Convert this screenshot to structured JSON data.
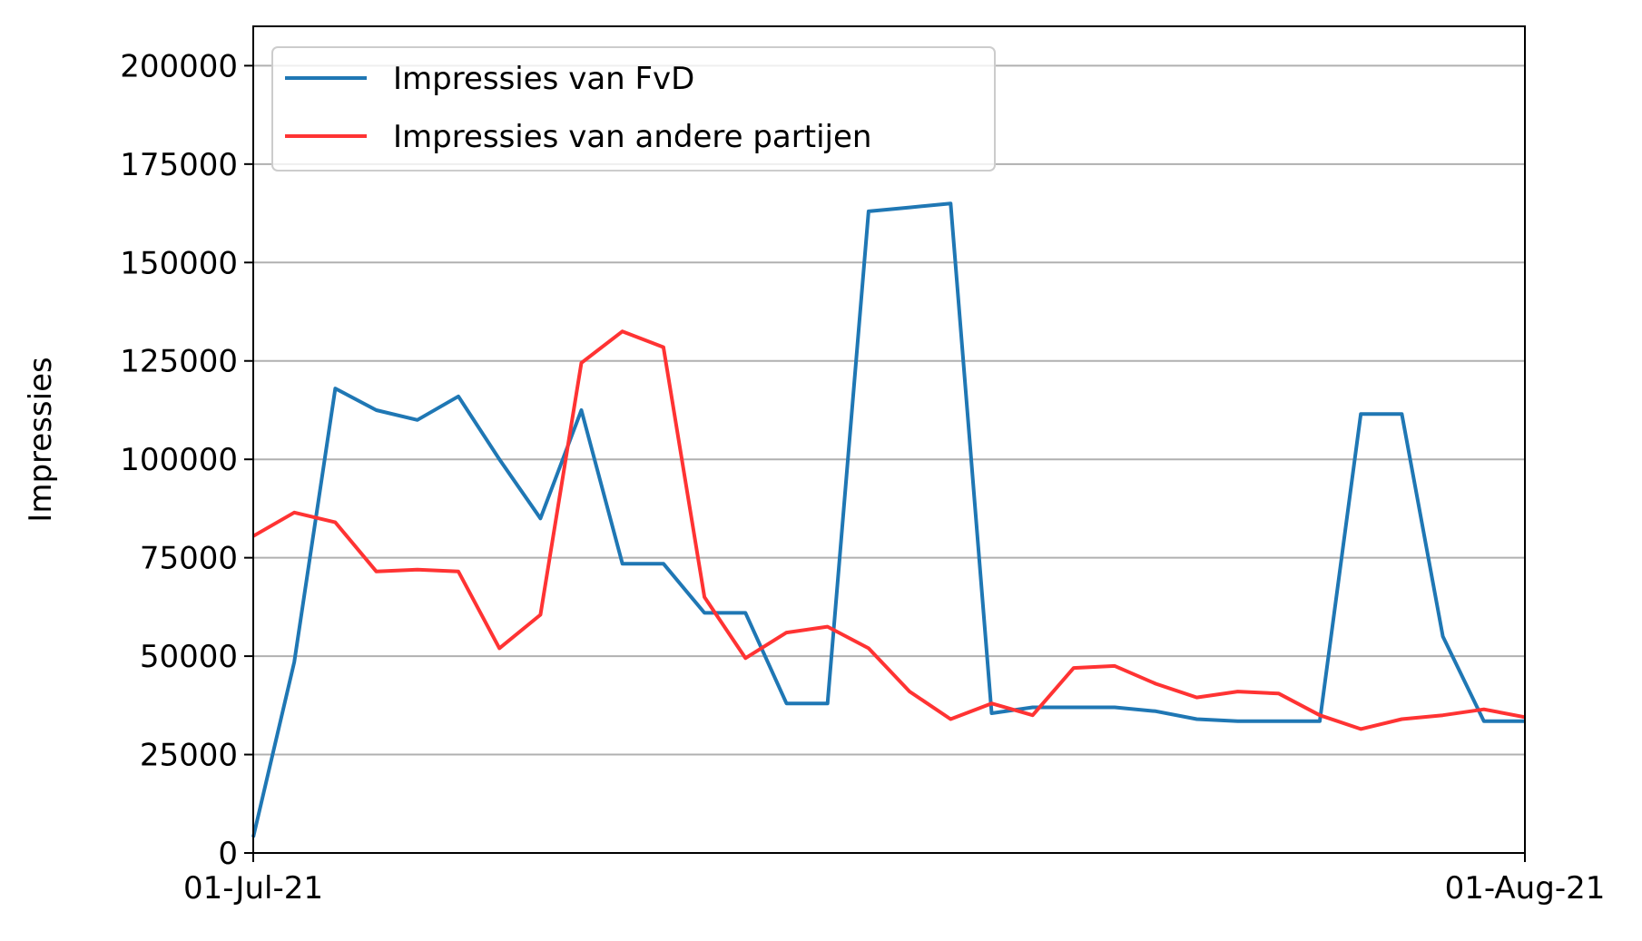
{
  "chart_data": {
    "type": "line",
    "title": "",
    "xlabel": "",
    "ylabel": "Impressies",
    "x_tick_labels": [
      "01-Jul-21",
      "01-Aug-21"
    ],
    "y_ticks": [
      0,
      25000,
      50000,
      75000,
      100000,
      125000,
      150000,
      175000,
      200000
    ],
    "y_tick_labels": [
      "0",
      "25000",
      "50000",
      "75000",
      "100000",
      "125000",
      "150000",
      "175000",
      "200000"
    ],
    "xlim": [
      "2021-07-01",
      "2021-08-01"
    ],
    "ylim": [
      0,
      210000
    ],
    "grid": "horizontal",
    "legend_position": "top-left",
    "x": [
      "2021-07-01",
      "2021-07-02",
      "2021-07-03",
      "2021-07-04",
      "2021-07-05",
      "2021-07-06",
      "2021-07-07",
      "2021-07-08",
      "2021-07-09",
      "2021-07-10",
      "2021-07-11",
      "2021-07-12",
      "2021-07-13",
      "2021-07-14",
      "2021-07-15",
      "2021-07-16",
      "2021-07-17",
      "2021-07-18",
      "2021-07-19",
      "2021-07-20",
      "2021-07-21",
      "2021-07-22",
      "2021-07-23",
      "2021-07-24",
      "2021-07-25",
      "2021-07-26",
      "2021-07-27",
      "2021-07-28",
      "2021-07-29",
      "2021-07-30",
      "2021-07-31",
      "2021-08-01"
    ],
    "series": [
      {
        "name": "Impressies van FvD",
        "color": "#1f77b4",
        "values": [
          4000,
          48500,
          118000,
          112500,
          110000,
          116000,
          100000,
          85000,
          112500,
          73500,
          73500,
          61000,
          61000,
          38000,
          38000,
          163000,
          164000,
          165000,
          35500,
          37000,
          37000,
          37000,
          36000,
          34000,
          33500,
          33500,
          33500,
          111500,
          111500,
          55000,
          33500,
          33500
        ]
      },
      {
        "name": "Impressies van andere partijen",
        "color": "#ff3333",
        "values": [
          80500,
          86500,
          84000,
          71500,
          72000,
          71500,
          52000,
          60500,
          124500,
          132500,
          128500,
          65000,
          49500,
          56000,
          57500,
          52000,
          41000,
          34000,
          38000,
          35000,
          47000,
          47500,
          43000,
          39500,
          41000,
          40500,
          35000,
          31500,
          34000,
          35000,
          36500,
          34500
        ]
      }
    ]
  }
}
